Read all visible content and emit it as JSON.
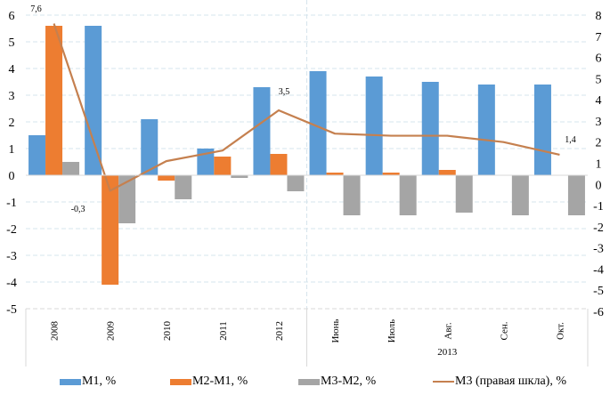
{
  "chart_data": {
    "type": "bar",
    "title": "",
    "categories": [
      "2008",
      "2009",
      "2010",
      "2011",
      "2012",
      "Июнь",
      "Июль",
      "Авг.",
      "Сен.",
      "Окт."
    ],
    "category_group_labels": [
      {
        "label": "2013",
        "categories": [
          "Июнь",
          "Июль",
          "Авг.",
          "Сен.",
          "Окт."
        ]
      }
    ],
    "series": [
      {
        "name": "M1, %",
        "type": "bar",
        "axis": "left",
        "color": "#5B9BD5",
        "values": [
          1.5,
          5.6,
          2.1,
          1.0,
          3.3,
          3.9,
          3.7,
          3.5,
          3.4,
          3.4
        ]
      },
      {
        "name": "M2-M1, %",
        "type": "bar",
        "axis": "left",
        "color": "#ED7D31",
        "values": [
          5.6,
          -4.1,
          -0.2,
          0.7,
          0.8,
          0.1,
          0.1,
          0.2,
          0.0,
          0.0
        ]
      },
      {
        "name": "M3-M2, %",
        "type": "bar",
        "axis": "left",
        "color": "#A5A5A5",
        "values": [
          0.5,
          -1.8,
          -0.9,
          -0.1,
          -0.6,
          -1.5,
          -1.5,
          -1.4,
          -1.5,
          -1.5
        ]
      },
      {
        "name": "M3 (правая шкла), %",
        "type": "line",
        "axis": "right",
        "color": "#C5804F",
        "values": [
          7.6,
          -0.3,
          1.1,
          1.6,
          3.5,
          2.4,
          2.3,
          2.3,
          2.0,
          1.4
        ]
      }
    ],
    "data_labels": [
      {
        "series": "M3 (правая шкла), %",
        "category": "2008",
        "text": "7,6"
      },
      {
        "series": "M3 (правая шкла), %",
        "category": "2009",
        "text": "-0,3"
      },
      {
        "series": "M3 (правая шкла), %",
        "category": "2012",
        "text": "3,5"
      },
      {
        "series": "M3 (правая шкла), %",
        "category": "Окт.",
        "text": "1,4"
      }
    ],
    "y_left": {
      "min": -5,
      "max": 6,
      "step": 1,
      "ticks": [
        "6",
        "5",
        "4",
        "3",
        "2",
        "1",
        "0",
        "-1",
        "-2",
        "-3",
        "-4",
        "-5"
      ]
    },
    "y_right": {
      "min": -6,
      "max": 8,
      "step": 1,
      "ticks": [
        "8",
        "7",
        "6",
        "5",
        "4",
        "3",
        "2",
        "1",
        "0",
        "-1",
        "-2",
        "-3",
        "-4",
        "-5",
        "-6"
      ]
    },
    "xlabel": "",
    "ylabel": "",
    "grid": true,
    "legend_position": "bottom"
  },
  "legend": {
    "items": [
      {
        "label": "M1, %",
        "color": "#5B9BD5",
        "kind": "bar"
      },
      {
        "label": "M2-M1, %",
        "color": "#ED7D31",
        "kind": "bar"
      },
      {
        "label": "M3-M2, %",
        "color": "#A5A5A5",
        "kind": "bar"
      },
      {
        "label": "M3 (правая шкла), %",
        "color": "#C5804F",
        "kind": "line"
      }
    ]
  }
}
